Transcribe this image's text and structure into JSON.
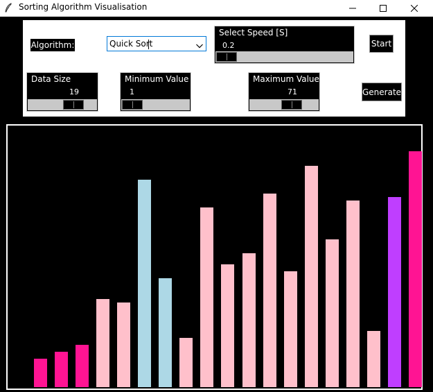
{
  "window": {
    "title": "Sorting Algorithm Visualisation"
  },
  "controls": {
    "algorithm_label": "Algorithm:",
    "algorithm_value": "Quick Sort",
    "speed": {
      "label": "Select Speed [S]",
      "value": "0.2",
      "min": 0.1,
      "max": 2.0
    },
    "data_size": {
      "label": "Data Size",
      "value": "19",
      "min": 3,
      "max": 25
    },
    "min_value": {
      "label": "Minimum Value",
      "value": "1",
      "min": 0,
      "max": 10
    },
    "max_value": {
      "label": "Maximum Value",
      "value": "71",
      "min": 0,
      "max": 100
    },
    "start_label": "Start",
    "generate_label": "Generate"
  },
  "colors": {
    "sorted": "#ff1493",
    "unsorted": "#ffc0cb",
    "active_range": "#add8e6",
    "pivot": "#bf3eff"
  },
  "bars": [
    {
      "value": 8,
      "state": "sorted"
    },
    {
      "value": 10,
      "state": "sorted"
    },
    {
      "value": 12,
      "state": "sorted"
    },
    {
      "value": 25,
      "state": "unsorted"
    },
    {
      "value": 24,
      "state": "unsorted"
    },
    {
      "value": 59,
      "state": "active_range"
    },
    {
      "value": 31,
      "state": "active_range"
    },
    {
      "value": 14,
      "state": "unsorted"
    },
    {
      "value": 51,
      "state": "unsorted"
    },
    {
      "value": 35,
      "state": "unsorted"
    },
    {
      "value": 38,
      "state": "unsorted"
    },
    {
      "value": 55,
      "state": "unsorted"
    },
    {
      "value": 33,
      "state": "unsorted"
    },
    {
      "value": 63,
      "state": "unsorted"
    },
    {
      "value": 42,
      "state": "unsorted"
    },
    {
      "value": 53,
      "state": "unsorted"
    },
    {
      "value": 16,
      "state": "unsorted"
    },
    {
      "value": 54,
      "state": "pivot"
    },
    {
      "value": 67,
      "state": "sorted"
    }
  ]
}
